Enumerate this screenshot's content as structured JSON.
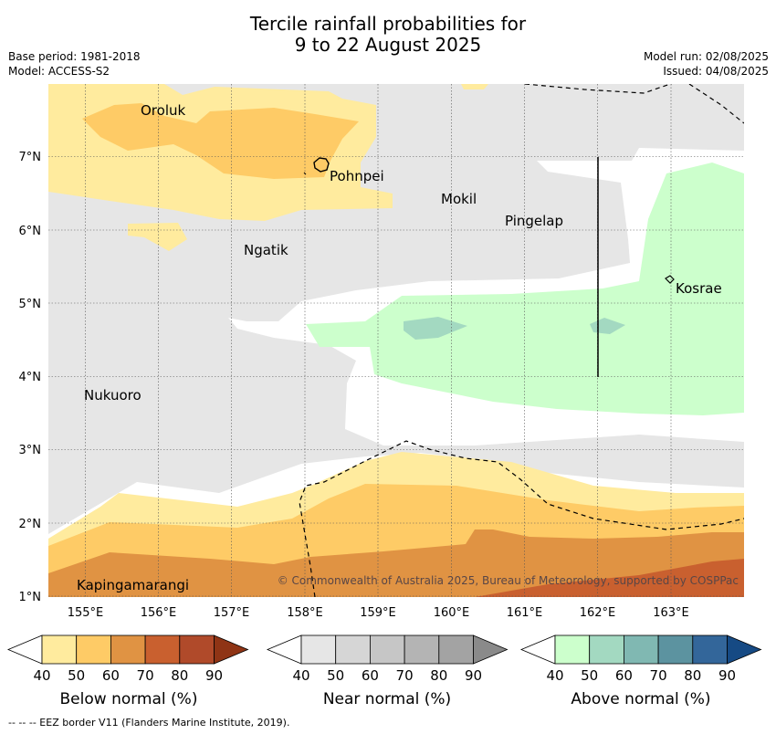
{
  "title_line1": "Tercile rainfall probabilities for",
  "title_line2": "9 to 22 August 2025",
  "meta": {
    "base_period": "Base period: 1981-2018",
    "model": "Model: ACCESS-S2",
    "model_run": "Model run: 02/08/2025",
    "issued": "Issued: 04/08/2025"
  },
  "copyright": "© Commonwealth of Australia 2025, Bureau of Meteorology, supported by COSPPac",
  "eez_note": "--  --  -- EEZ border V11 (Flanders Marine Institute, 2019).",
  "map": {
    "x_ticks": [
      "155°E",
      "156°E",
      "157°E",
      "158°E",
      "159°E",
      "160°E",
      "161°E",
      "162°E",
      "163°E"
    ],
    "y_ticks": [
      "7°N",
      "6°N",
      "5°N",
      "4°N",
      "3°N",
      "2°N",
      "1°N"
    ],
    "places": [
      {
        "name": "Oroluk"
      },
      {
        "name": "Pohnpei"
      },
      {
        "name": "Mokil"
      },
      {
        "name": "Pingelap"
      },
      {
        "name": "Ngatik"
      },
      {
        "name": "Kosrae"
      },
      {
        "name": "Nukuoro"
      },
      {
        "name": "Kapingamarangi"
      }
    ]
  },
  "colorbars": [
    {
      "label": "Below normal (%)",
      "ticks": [
        "40",
        "50",
        "60",
        "70",
        "80",
        "90"
      ],
      "colors": [
        "#ffffff",
        "#ffeb9e",
        "#fecb66",
        "#e09343",
        "#c9602f",
        "#b04a2a",
        "#8f3415"
      ]
    },
    {
      "label": "Near normal (%)",
      "ticks": [
        "40",
        "50",
        "60",
        "70",
        "80",
        "90"
      ],
      "colors": [
        "#ffffff",
        "#e6e6e6",
        "#d6d6d6",
        "#c6c6c6",
        "#b4b4b4",
        "#a3a3a3",
        "#8a8a8a"
      ]
    },
    {
      "label": "Above normal (%)",
      "ticks": [
        "40",
        "50",
        "60",
        "70",
        "80",
        "90"
      ],
      "colors": [
        "#ffffff",
        "#ccffcc",
        "#a3d9c1",
        "#80b8b2",
        "#5c93a0",
        "#33669a",
        "#164a84"
      ]
    }
  ]
}
